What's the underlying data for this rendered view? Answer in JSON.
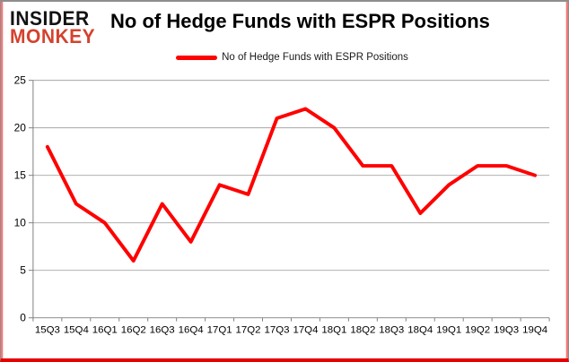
{
  "logo": {
    "line1": "INSIDER",
    "line2": "MONKEY"
  },
  "header": {
    "title": "No of Hedge Funds with ESPR Positions"
  },
  "legend": {
    "label": "No of Hedge Funds with ESPR Positions",
    "swatch_color": "#ff0000"
  },
  "colors": {
    "series_line": "#ff0000",
    "logo_accent": "#d4422e",
    "gridline": "#a6a6a6",
    "axis": "#7f7f7f",
    "tick_label": "#000000",
    "frame_gray": "#8e8e8e",
    "frame_red": "#e60000",
    "background": "#ffffff"
  },
  "chart_data": {
    "type": "line",
    "title": "No of Hedge Funds with ESPR Positions",
    "categories": [
      "15Q3",
      "15Q4",
      "16Q1",
      "16Q2",
      "16Q3",
      "16Q4",
      "17Q1",
      "17Q2",
      "17Q3",
      "17Q4",
      "18Q1",
      "18Q2",
      "18Q3",
      "18Q4",
      "19Q1",
      "19Q2",
      "19Q3",
      "19Q4"
    ],
    "series": [
      {
        "name": "No of Hedge Funds with ESPR Positions",
        "color": "#ff0000",
        "values": [
          18,
          12,
          10,
          6,
          12,
          8,
          14,
          13,
          21,
          22,
          20,
          16,
          16,
          11,
          14,
          16,
          16,
          15
        ]
      }
    ],
    "xlabel": "",
    "ylabel": "",
    "ylim": [
      0,
      25
    ],
    "yticks": [
      0,
      5,
      10,
      15,
      20,
      25
    ],
    "grid": true,
    "legend_position": "top-center"
  }
}
